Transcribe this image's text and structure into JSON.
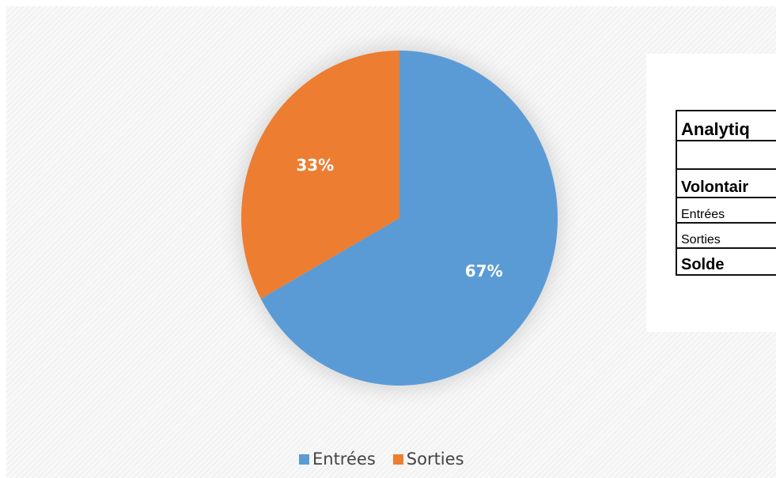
{
  "chart_data": {
    "type": "pie",
    "categories": [
      "Entrées",
      "Sorties"
    ],
    "values": [
      67,
      33
    ],
    "data_labels": [
      "67%",
      "33%"
    ],
    "colors": [
      "#5b9bd5",
      "#ed7d31"
    ],
    "legend_position": "bottom",
    "start_angle": "12 o'clock",
    "direction": "clockwise"
  },
  "legend": {
    "items": [
      {
        "label": "Entrées",
        "color": "#5b9bd5"
      },
      {
        "label": "Sorties",
        "color": "#ed7d31"
      }
    ]
  },
  "table": {
    "title": "Analytiq",
    "section": "Volontair",
    "rows": [
      "Entrées",
      "Sorties"
    ],
    "total": "Solde"
  }
}
